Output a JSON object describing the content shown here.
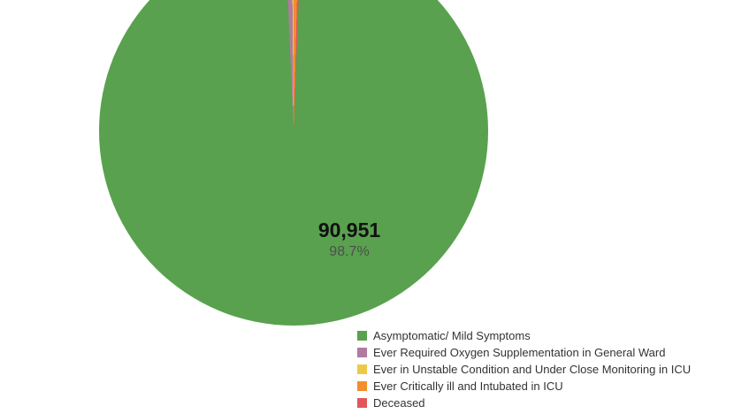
{
  "chart_data": {
    "type": "pie",
    "title": "",
    "legend_position": "bottom-right",
    "start_angle_deg": 2.2,
    "slices": [
      {
        "label": "Asymptomatic/ Mild Symptoms",
        "value": 90951,
        "percent": 98.7,
        "color": "#59A14F",
        "percent_estimated": false
      },
      {
        "label": "Ever Required Oxygen Supplementation in General Ward",
        "percent": 0.55,
        "color": "#B07AA1",
        "percent_estimated": true
      },
      {
        "label": "Ever in Unstable Condition and Under Close Monitoring in ICU",
        "percent": 0.15,
        "color": "#EDC948",
        "percent_estimated": true
      },
      {
        "label": "Ever Critically ill and Intubated in ICU",
        "percent": 0.4,
        "color": "#F28E2B",
        "percent_estimated": true
      },
      {
        "label": "Deceased",
        "percent": 0.2,
        "color": "#E15759",
        "percent_estimated": true
      }
    ],
    "slice_label": {
      "value_text": "90,951",
      "percent_text": "98.7%"
    }
  }
}
